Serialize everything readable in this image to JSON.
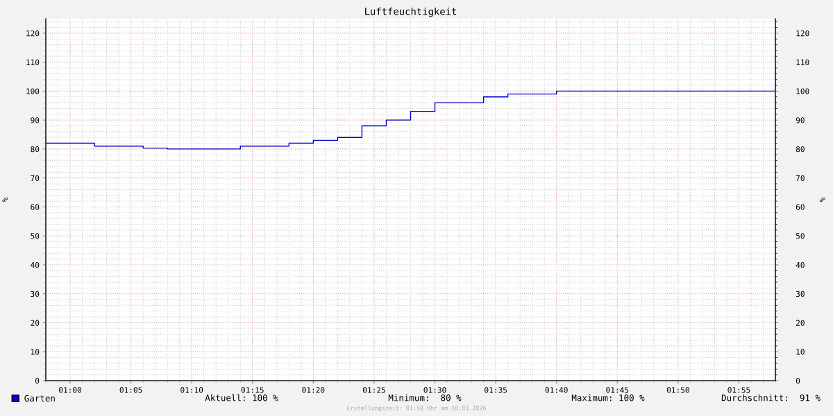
{
  "chart_data": {
    "type": "step",
    "title": "Luftfeuchtigkeit",
    "ylabel": "%",
    "y2label": "%",
    "x": [
      "2026-03-16T00:58",
      "2026-03-16T01:02",
      "2026-03-16T01:06",
      "2026-03-16T01:08",
      "2026-03-16T01:14",
      "2026-03-16T01:18",
      "2026-03-16T01:20",
      "2026-03-16T01:22",
      "2026-03-16T01:24",
      "2026-03-16T01:26",
      "2026-03-16T01:28",
      "2026-03-16T01:30",
      "2026-03-16T01:34",
      "2026-03-16T01:36",
      "2026-03-16T01:40",
      "2026-03-16T01:58"
    ],
    "series": [
      {
        "name": "Garten",
        "color": "#0000cc",
        "values": [
          82,
          81,
          80.3,
          80,
          81,
          82,
          83,
          84,
          88,
          90,
          93,
          96,
          98,
          99,
          100,
          100
        ]
      }
    ],
    "xlim": [
      "2026-03-16T00:58",
      "2026-03-16T01:58"
    ],
    "xticks": [
      {
        "value": "2026-03-16T01:00",
        "label": "01:00"
      },
      {
        "value": "2026-03-16T01:05",
        "label": "01:05"
      },
      {
        "value": "2026-03-16T01:10",
        "label": "01:10"
      },
      {
        "value": "2026-03-16T01:15",
        "label": "01:15"
      },
      {
        "value": "2026-03-16T01:20",
        "label": "01:20"
      },
      {
        "value": "2026-03-16T01:25",
        "label": "01:25"
      },
      {
        "value": "2026-03-16T01:30",
        "label": "01:30"
      },
      {
        "value": "2026-03-16T01:35",
        "label": "01:35"
      },
      {
        "value": "2026-03-16T01:40",
        "label": "01:40"
      },
      {
        "value": "2026-03-16T01:45",
        "label": "01:45"
      },
      {
        "value": "2026-03-16T01:50",
        "label": "01:50"
      },
      {
        "value": "2026-03-16T01:55",
        "label": "01:55"
      }
    ],
    "ylim": [
      0,
      125
    ],
    "yticks": [
      0,
      10,
      20,
      30,
      40,
      50,
      60,
      70,
      80,
      90,
      100,
      110,
      120
    ],
    "y2lim": [
      0,
      125
    ],
    "y2ticks": [
      0,
      10,
      20,
      30,
      40,
      50,
      60,
      70,
      80,
      90,
      100,
      110,
      120
    ],
    "grid": true,
    "legend": "bottom left",
    "line_style": "solid",
    "marker": "none",
    "annotations": [
      "Aktuell: 100 %",
      "Minimum:  80 %",
      "Maximum: 100 %",
      "Durchschnitt:  91 %",
      "Erstellungszeit: 01:58 Uhr am 16.03.2026"
    ]
  }
}
